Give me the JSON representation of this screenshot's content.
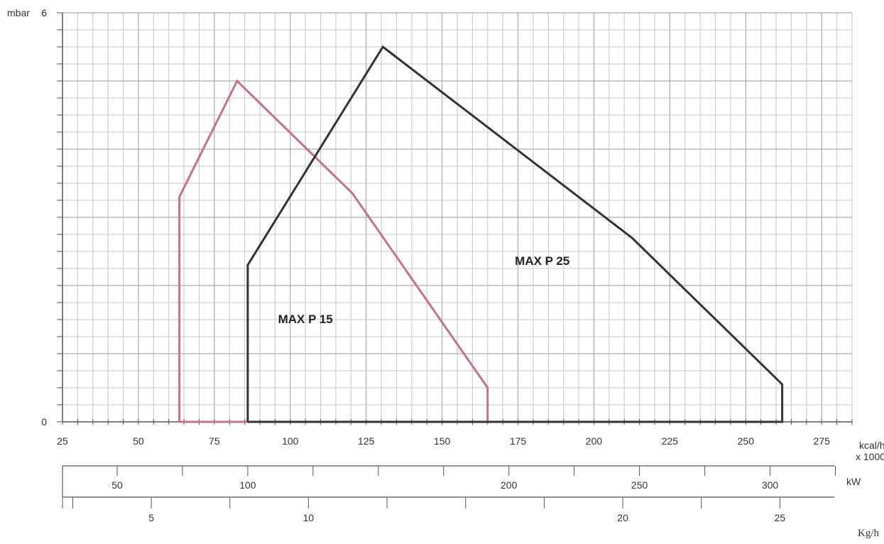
{
  "chart_data": {
    "type": "line",
    "title": "",
    "xlabel": "kcal/h",
    "xlabel_multiplier": "x 1000",
    "ylabel": "mbar",
    "xlim": [
      25,
      285
    ],
    "ylim": [
      0,
      6
    ],
    "y_tick_labels": [
      {
        "value": 6,
        "label": "6"
      },
      {
        "value": 0,
        "label": "0"
      }
    ],
    "x_ticks": [
      25,
      50,
      75,
      100,
      125,
      150,
      175,
      200,
      225,
      250,
      275
    ],
    "grid": true,
    "series": [
      {
        "name": "MAX P 15",
        "color": "#c4708f",
        "points": [
          {
            "x": 63.5,
            "y": 0
          },
          {
            "x": 63.5,
            "y": 3.3
          },
          {
            "x": 82.5,
            "y": 5.0
          },
          {
            "x": 120.5,
            "y": 3.35
          },
          {
            "x": 165,
            "y": 0.5
          },
          {
            "x": 165,
            "y": 0
          },
          {
            "x": 63.5,
            "y": 0
          }
        ]
      },
      {
        "name": "MAX P 25",
        "color": "#333333",
        "points": [
          {
            "x": 86,
            "y": 0
          },
          {
            "x": 86,
            "y": 2.3
          },
          {
            "x": 130.5,
            "y": 5.5
          },
          {
            "x": 212.5,
            "y": 2.7
          },
          {
            "x": 262,
            "y": 0.55
          },
          {
            "x": 262,
            "y": 0
          },
          {
            "x": 86,
            "y": 0
          }
        ]
      }
    ],
    "secondary_axes": [
      {
        "unit": "kW",
        "labels": [
          {
            "value": 50,
            "label": "50"
          },
          {
            "value": 100,
            "label": "100"
          },
          {
            "value": 200,
            "label": "200"
          },
          {
            "value": 250,
            "label": "250"
          },
          {
            "value": 300,
            "label": "300"
          }
        ]
      },
      {
        "unit": "Kg/h",
        "labels": [
          {
            "value": 5,
            "label": "5"
          },
          {
            "value": 10,
            "label": "10"
          },
          {
            "value": 20,
            "label": "20"
          },
          {
            "value": 25,
            "label": "25"
          }
        ]
      }
    ]
  }
}
